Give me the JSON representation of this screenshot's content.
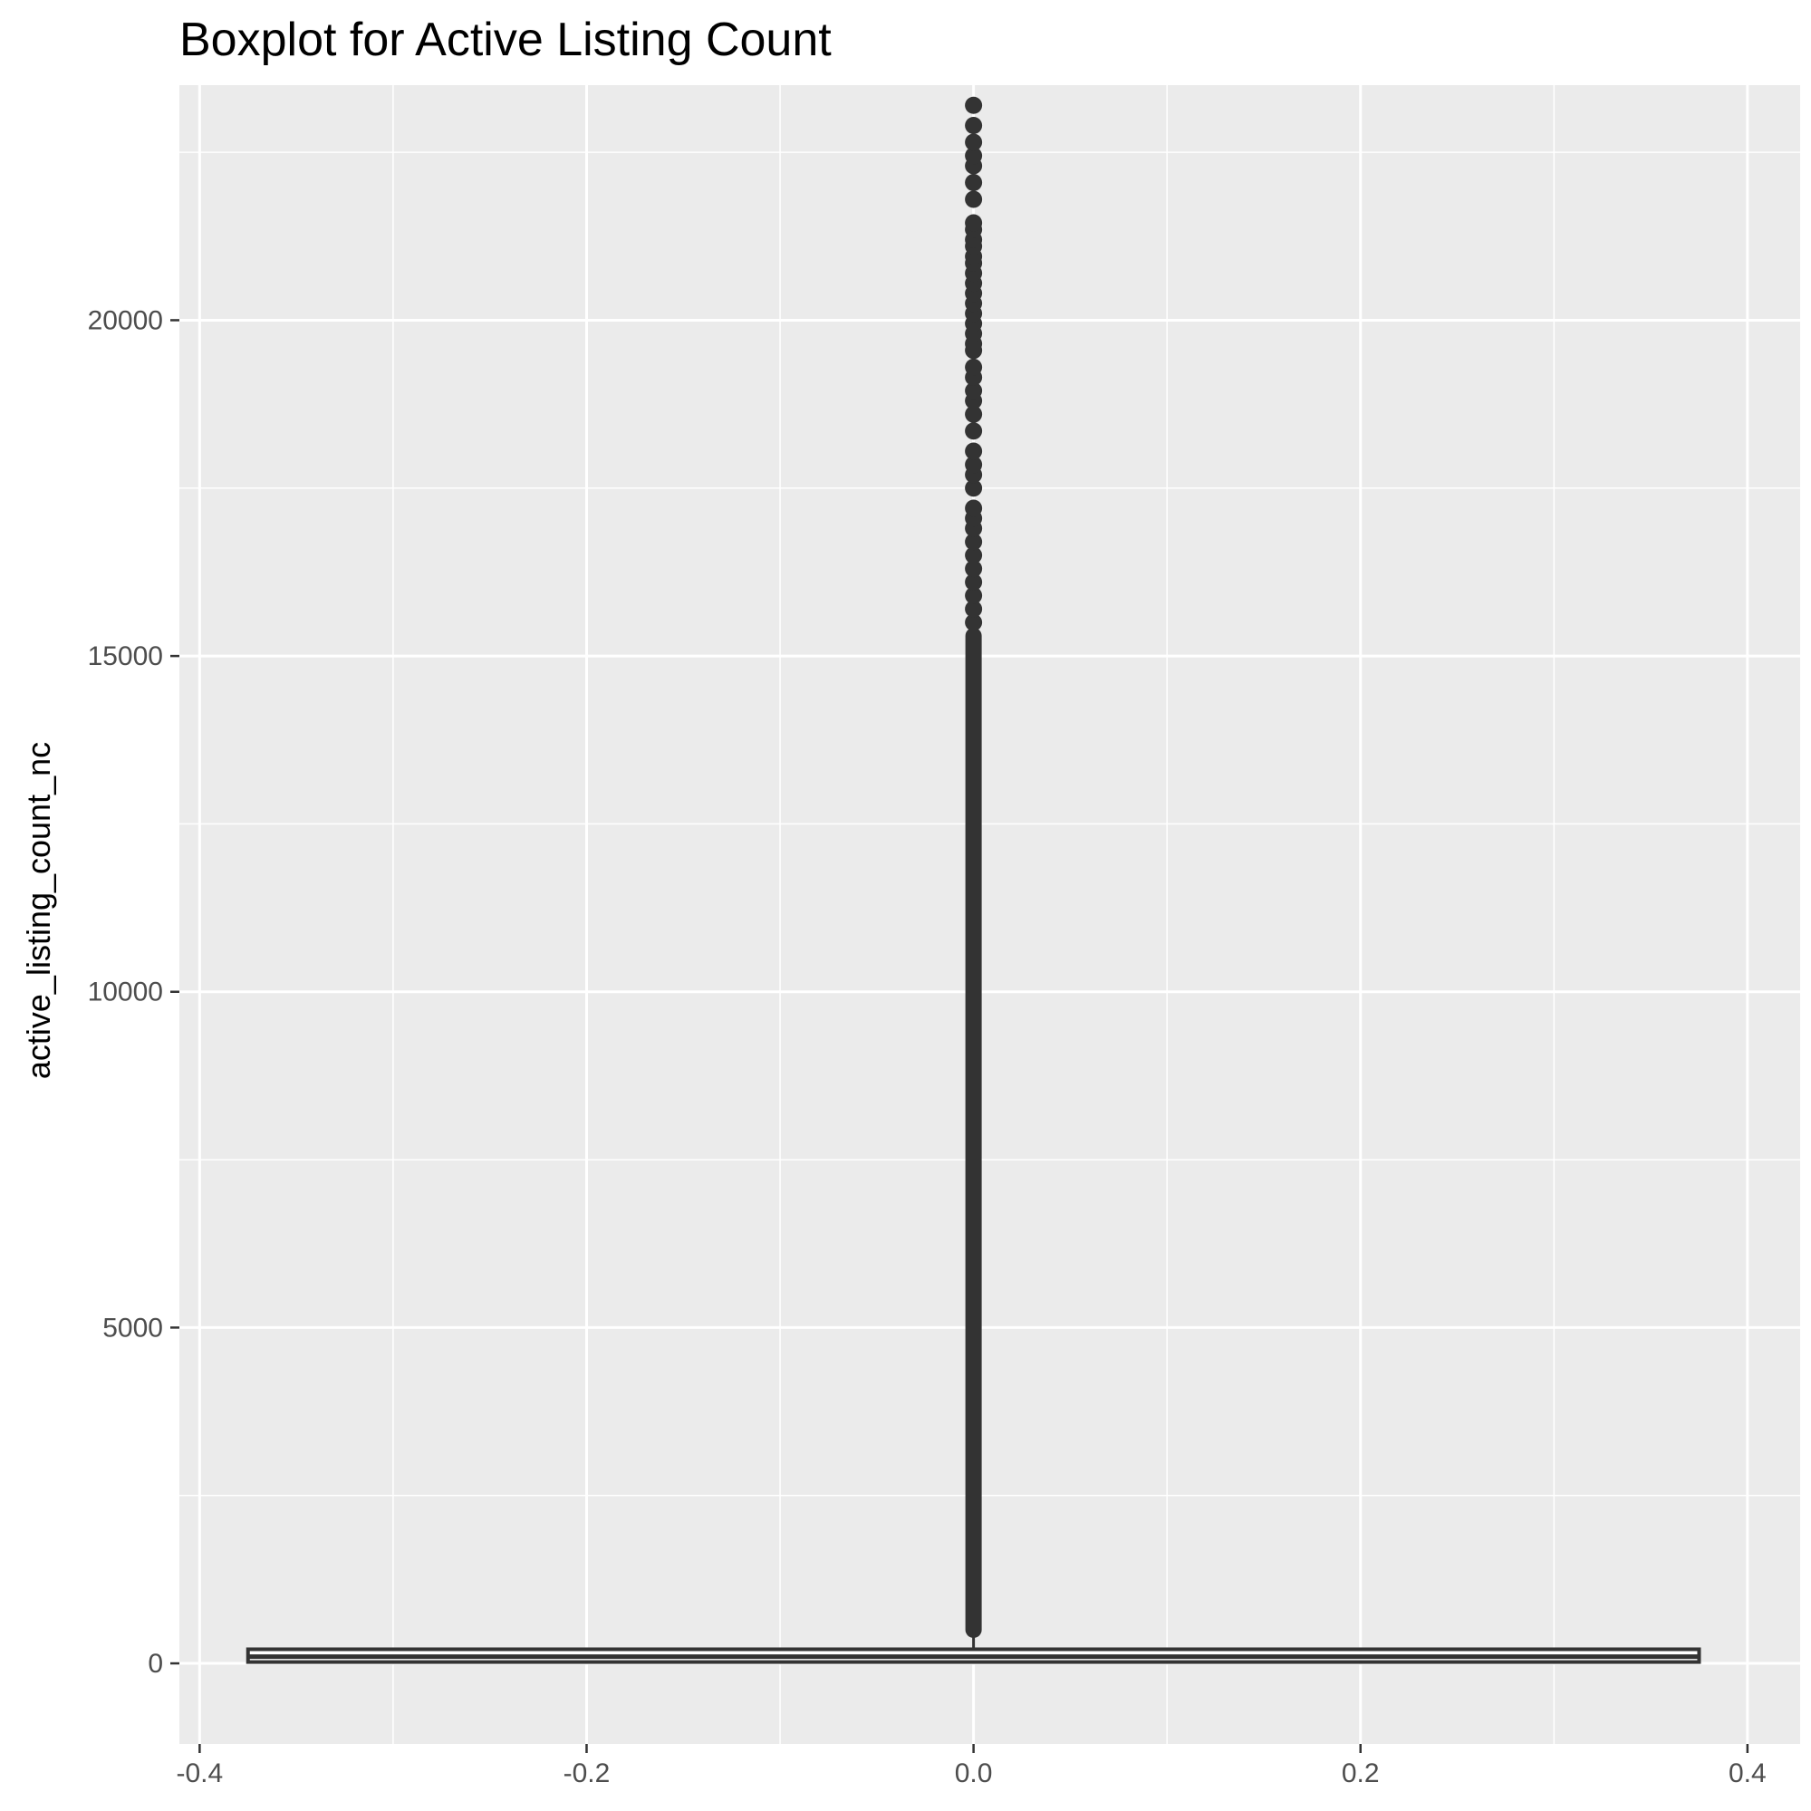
{
  "chart_data": {
    "type": "boxplot",
    "title": "Boxplot for Active Listing Count",
    "xlabel": "",
    "ylabel": "active_listing_count_nc",
    "xlim": [
      -0.4,
      0.4
    ],
    "ylim": [
      -1200,
      23500
    ],
    "x_ticks": [
      {
        "value": -0.4,
        "label": "-0.4"
      },
      {
        "value": -0.2,
        "label": "-0.2"
      },
      {
        "value": 0.0,
        "label": "0.0"
      },
      {
        "value": 0.2,
        "label": "0.2"
      },
      {
        "value": 0.4,
        "label": "0.4"
      }
    ],
    "y_ticks": [
      {
        "value": 0,
        "label": "0"
      },
      {
        "value": 5000,
        "label": "5000"
      },
      {
        "value": 10000,
        "label": "10000"
      },
      {
        "value": 15000,
        "label": "15000"
      },
      {
        "value": 20000,
        "label": "20000"
      }
    ],
    "grid": true,
    "box": {
      "x": 0.0,
      "half_width": 0.375,
      "q1": 20,
      "median": 100,
      "q3": 210,
      "whisker_low": 0,
      "whisker_high": 500
    },
    "outliers_dense_range": [
      500,
      15300
    ],
    "outliers_sparse": [
      15500,
      15700,
      15900,
      16100,
      16300,
      16500,
      16700,
      16900,
      17050,
      17200,
      17500,
      17700,
      17850,
      18050,
      18350,
      18600,
      18800,
      18950,
      19150,
      19300,
      19550,
      19650,
      19800,
      19950,
      20100,
      20250,
      20400,
      20550,
      20700,
      20850,
      20950,
      21100,
      21200,
      21350,
      21450,
      21800,
      22050,
      22300,
      22450,
      22650,
      22900,
      23200
    ],
    "colors": {
      "panel": "#ebebeb",
      "grid": "#ffffff",
      "point": "#333333",
      "box_line": "#333333",
      "tick": "#333333"
    }
  }
}
